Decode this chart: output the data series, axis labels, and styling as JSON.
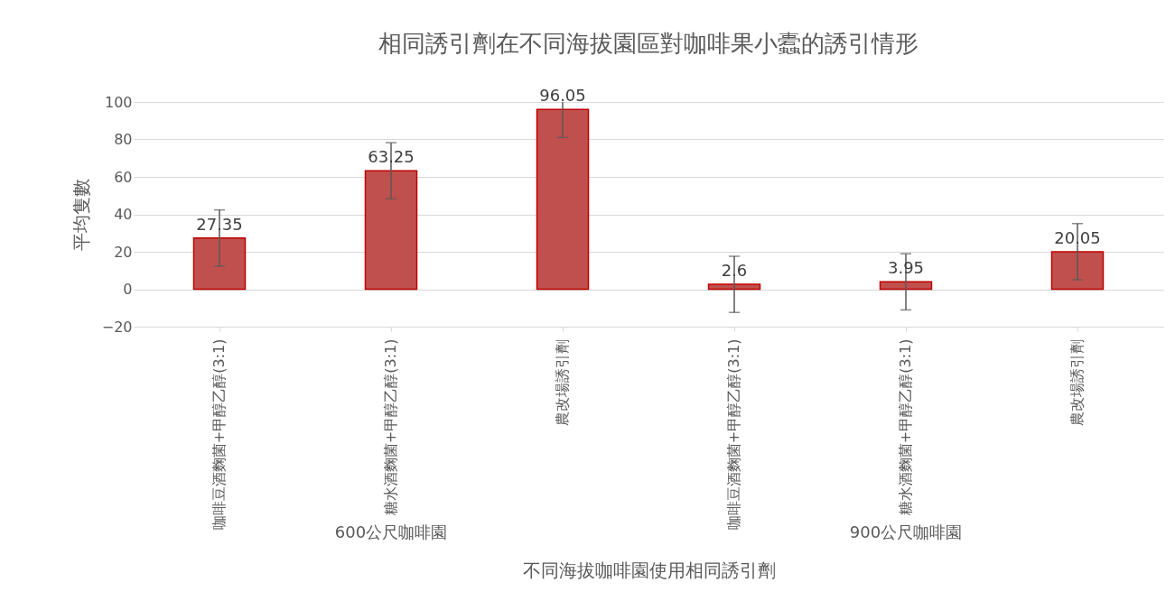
{
  "chart_data": {
    "type": "bar",
    "title": "相同誘引劑在不同海拔園區對咖啡果小蠹的誘引情形",
    "xlabel": "不同海拔咖啡園使用相同誘引劑",
    "ylabel": "平均隻數",
    "categories": [
      "咖啡豆酒麴菌+甲醇乙醇(3:1)",
      "糖水酒麴菌+甲醇乙醇(3:1)",
      "農改場誘引劑",
      "咖啡豆酒麴菌+甲醇乙醇(3:1)",
      "糖水酒麴菌+甲醇乙醇(3:1)",
      "農改場誘引劑"
    ],
    "values": [
      27.35,
      63.25,
      96.05,
      2.6,
      3.95,
      20.05
    ],
    "errors": [
      15,
      15,
      [
        81.05,
        100
      ],
      15,
      15,
      15
    ],
    "color": "#c0504d",
    "data_labels": true,
    "ylim": [
      -20,
      100
    ],
    "yticks": [
      -20,
      0,
      20,
      40,
      60,
      80,
      100
    ],
    "grid": "y",
    "annotations": [
      "600公尺咖啡園",
      "900公尺咖啡園"
    ]
  }
}
